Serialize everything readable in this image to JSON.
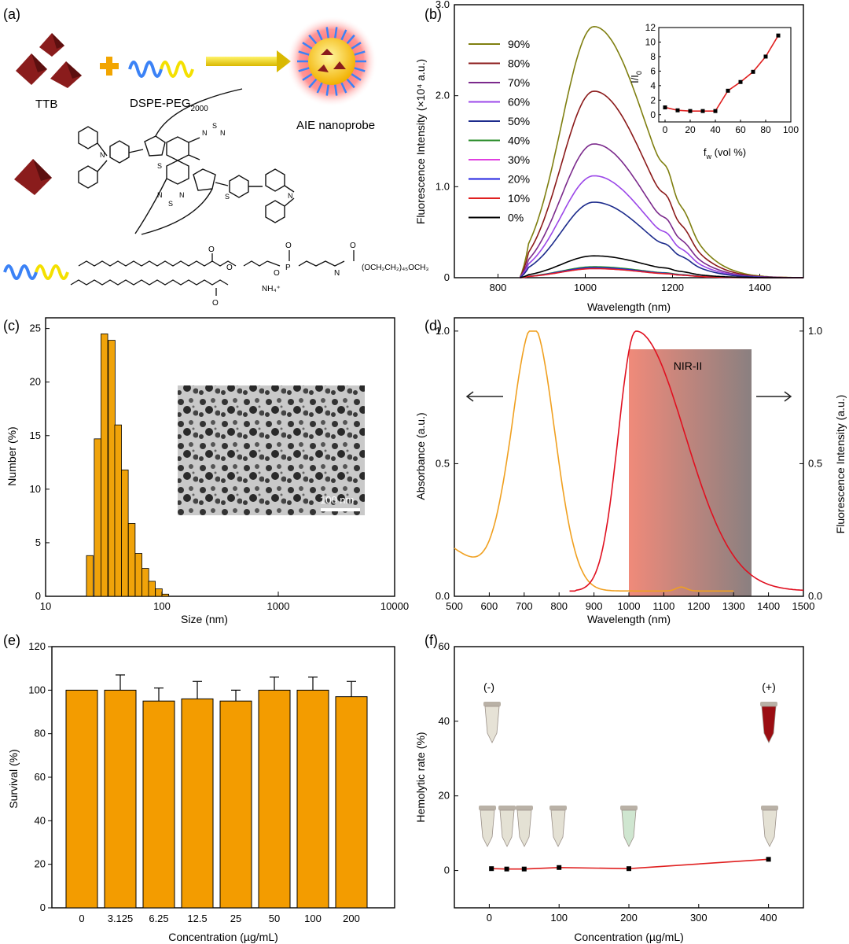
{
  "panels": {
    "a": {
      "tag": "(a)",
      "ttb_label": "TTB",
      "dspe_label": "DSPE-PEG",
      "dspe_sub": "2000",
      "nanoprobe_label": "AIE nanoprobe",
      "peg_formula": "(OCH₂CH₂)₄₅OCH₃",
      "ammonium": "NH₄⁺",
      "colors": {
        "pyramid": "#8a1c1c",
        "plus": "#f2a500",
        "arrow": "#e8d400",
        "peg_blue": "#3b82f6",
        "peg_yellow": "#f4e000"
      }
    },
    "b": {
      "tag": "(b)"
    },
    "c": {
      "tag": "(c)",
      "scale_bar": "100 nm"
    },
    "d": {
      "tag": "(d)",
      "band_label": "NIR-II"
    },
    "e": {
      "tag": "(e)"
    },
    "f": {
      "tag": "(f)",
      "neg_label": "(-)",
      "pos_label": "(+)"
    }
  },
  "chart_data": [
    {
      "panel": "b",
      "type": "line",
      "xlabel": "Wavelength (nm)",
      "ylabel": "Fluorescence Intensity (×10⁴ a.u.)",
      "xlim": [
        700,
        1500
      ],
      "ylim": [
        0,
        3.0
      ],
      "xticks": [
        "800",
        "1000",
        "1200",
        "1400"
      ],
      "yticks": [
        "0",
        "1.0",
        "2.0",
        "3.0"
      ],
      "legend_position": "left",
      "series": [
        {
          "name": "90%",
          "color": "#7f7f10",
          "peak": 2.76
        },
        {
          "name": "80%",
          "color": "#8b1a1a",
          "peak": 2.05
        },
        {
          "name": "70%",
          "color": "#7b2a8c",
          "peak": 1.47
        },
        {
          "name": "60%",
          "color": "#9b47e8",
          "peak": 1.12
        },
        {
          "name": "50%",
          "color": "#1c2b8c",
          "peak": 0.83
        },
        {
          "name": "40%",
          "color": "#2a8c2a",
          "peak": 0.12
        },
        {
          "name": "30%",
          "color": "#e040e0",
          "peak": 0.1
        },
        {
          "name": "20%",
          "color": "#2020e0",
          "peak": 0.11
        },
        {
          "name": "10%",
          "color": "#e02020",
          "peak": 0.1
        },
        {
          "name": "0%",
          "color": "#000000",
          "peak": 0.24
        }
      ],
      "inset": {
        "type": "line",
        "xlabel": "f",
        "xlabel_sub": "w",
        "xlabel_rest": " (vol %)",
        "ylabel": "I/I",
        "ylabel_sub": "0",
        "xlim": [
          -5,
          100
        ],
        "ylim": [
          -1,
          12
        ],
        "xticks": [
          "0",
          "20",
          "40",
          "60",
          "80",
          "100"
        ],
        "yticks": [
          "0",
          "2",
          "4",
          "6",
          "8",
          "10",
          "12"
        ],
        "x": [
          0,
          10,
          20,
          30,
          40,
          50,
          60,
          70,
          80,
          90
        ],
        "y": [
          1.0,
          0.6,
          0.5,
          0.5,
          0.5,
          3.3,
          4.5,
          5.9,
          8.0,
          10.9
        ],
        "color": "#e02020"
      }
    },
    {
      "panel": "c",
      "type": "bar",
      "xlabel": "Size (nm)",
      "ylabel": "Number (%)",
      "xscale": "log",
      "xlim": [
        10,
        10000
      ],
      "ylim": [
        0,
        26
      ],
      "xticks": [
        "10",
        "100",
        "1000",
        "10000"
      ],
      "yticks": [
        "0",
        "5",
        "10",
        "15",
        "20",
        "25"
      ],
      "bin_centers": [
        24,
        28,
        32,
        37,
        42,
        48,
        55,
        63,
        72,
        82,
        94,
        107
      ],
      "values": [
        3.8,
        14.7,
        24.5,
        23.9,
        16.0,
        11.8,
        6.8,
        4.0,
        2.6,
        1.4,
        0.7,
        0.2
      ],
      "color": "#f0a30a"
    },
    {
      "panel": "d",
      "type": "line",
      "xlabel": "Wavelength (nm)",
      "ylabel": "Absorbance (a.u.)",
      "y2label": "Fluorescence Intensity (a.u.)",
      "xlim": [
        500,
        1500
      ],
      "ylim": [
        0,
        1.05
      ],
      "xticks": [
        "500",
        "600",
        "700",
        "800",
        "900",
        "1000",
        "1100",
        "1200",
        "1300",
        "1400",
        "1500"
      ],
      "yticks": [
        "0.0",
        "0.5",
        "1.0"
      ],
      "band": [
        1000,
        1350
      ],
      "series": [
        {
          "name": "Absorbance",
          "color": "#f0a020",
          "peak_x": 725
        },
        {
          "name": "Fluorescence",
          "color": "#e01020",
          "peak_x": 1020
        }
      ]
    },
    {
      "panel": "e",
      "type": "bar",
      "xlabel": "Concentration (µg/mL)",
      "ylabel": "Survival  (%)",
      "ylim": [
        0,
        120
      ],
      "yticks": [
        "0",
        "20",
        "40",
        "60",
        "80",
        "100",
        "120"
      ],
      "categories": [
        "0",
        "3.125",
        "6.25",
        "12.5",
        "25",
        "50",
        "100",
        "200"
      ],
      "values": [
        100,
        100,
        95,
        96,
        95,
        100,
        100,
        97
      ],
      "errors": [
        0,
        7,
        6,
        8,
        5,
        6,
        6,
        7
      ],
      "color": "#f39c00"
    },
    {
      "panel": "f",
      "type": "line",
      "xlabel": "Concentration (µg/mL)",
      "ylabel": "Hemolytic rate (%)",
      "xlim": [
        -50,
        450
      ],
      "ylim": [
        -10,
        60
      ],
      "xticks": [
        "0",
        "100",
        "200",
        "300",
        "400"
      ],
      "yticks": [
        "0",
        "20",
        "40",
        "60"
      ],
      "x": [
        3.125,
        25,
        50,
        100,
        200,
        400
      ],
      "y": [
        0.5,
        0.4,
        0.4,
        0.8,
        0.5,
        3.0
      ],
      "color": "#e02020"
    }
  ]
}
